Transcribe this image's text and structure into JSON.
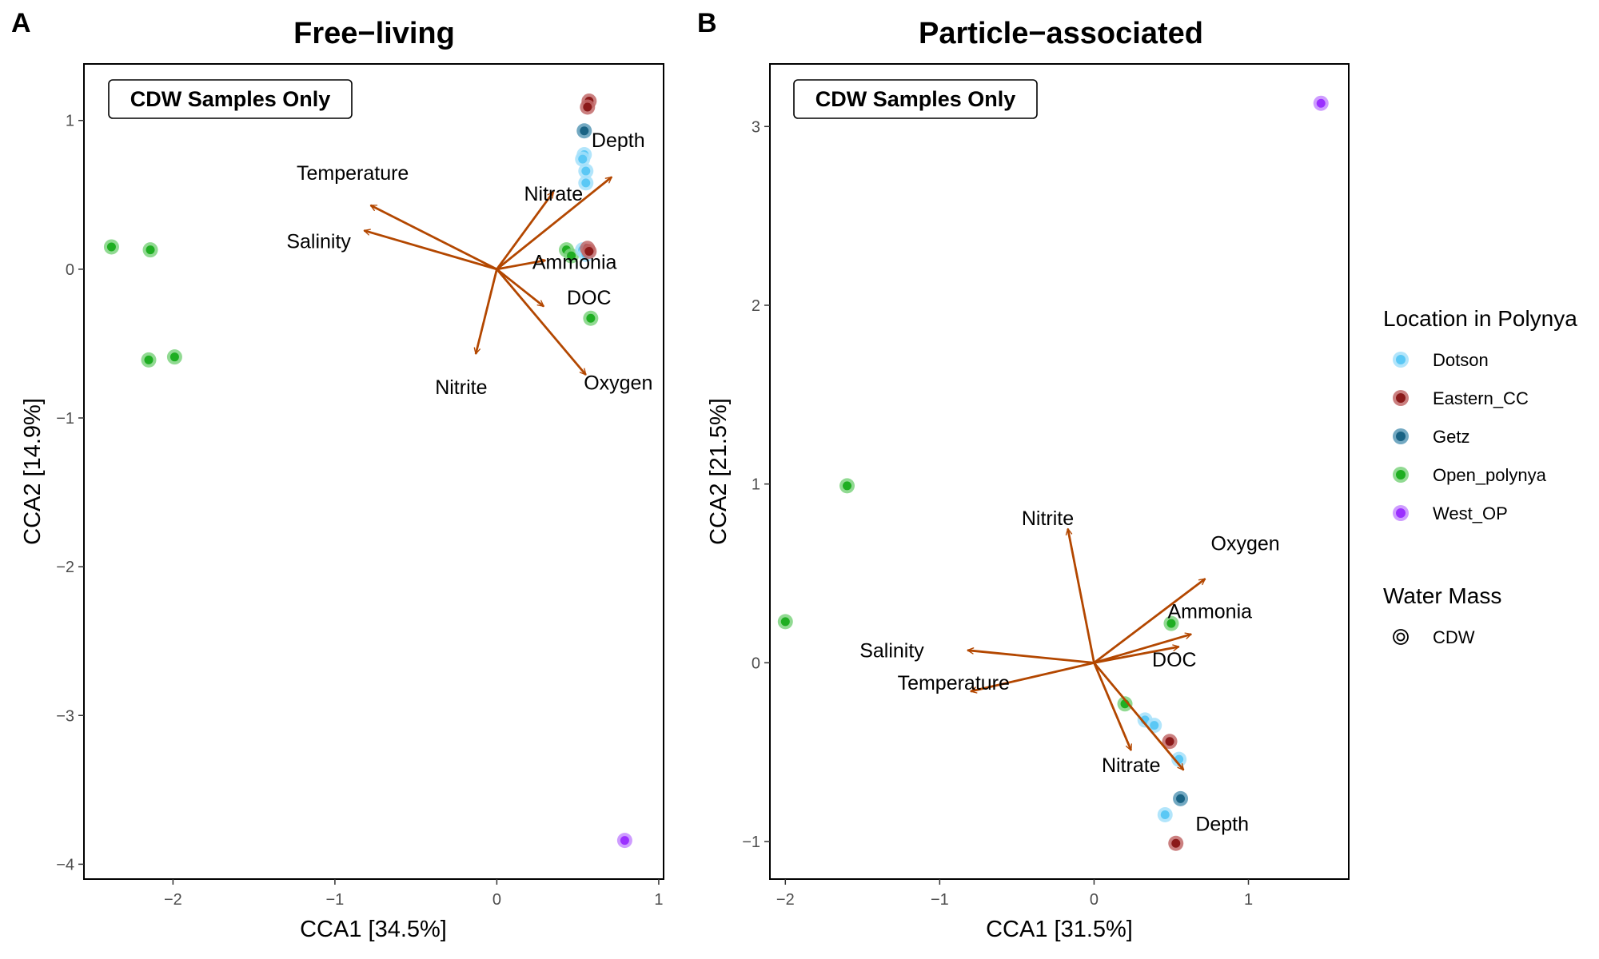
{
  "chart_data": [
    {
      "panel": "A",
      "type": "scatter",
      "title": "Free−living",
      "note": "CDW Samples Only",
      "xlabel": "CCA1   [34.5%]",
      "ylabel": "CCA2   [14.9%]",
      "xlim": [
        -2.55,
        1.03
      ],
      "ylim": [
        -4.1,
        1.38
      ],
      "xticks": [
        -2,
        -1,
        0,
        1
      ],
      "yticks": [
        -4,
        -3,
        -2,
        -1,
        0,
        1
      ],
      "xtick_labels": [
        "−2",
        "−1",
        "0",
        "1"
      ],
      "ytick_labels": [
        "−4",
        "−3",
        "−2",
        "−1",
        "0",
        "1"
      ],
      "grid": false,
      "points": [
        {
          "x": 0.57,
          "y": 1.13,
          "location": "Eastern_CC"
        },
        {
          "x": 0.56,
          "y": 1.09,
          "location": "Eastern_CC"
        },
        {
          "x": 0.54,
          "y": 0.93,
          "location": "Getz"
        },
        {
          "x": 0.54,
          "y": 0.77,
          "location": "Dotson"
        },
        {
          "x": 0.53,
          "y": 0.74,
          "location": "Dotson"
        },
        {
          "x": 0.55,
          "y": 0.66,
          "location": "Dotson"
        },
        {
          "x": 0.55,
          "y": 0.58,
          "location": "Dotson"
        },
        {
          "x": -2.38,
          "y": 0.15,
          "location": "Open_polynya"
        },
        {
          "x": -2.14,
          "y": 0.13,
          "location": "Open_polynya"
        },
        {
          "x": 0.43,
          "y": 0.13,
          "location": "Open_polynya"
        },
        {
          "x": 0.46,
          "y": 0.09,
          "location": "Open_polynya"
        },
        {
          "x": 0.53,
          "y": 0.13,
          "location": "Dotson"
        },
        {
          "x": 0.55,
          "y": 0.1,
          "location": "Dotson"
        },
        {
          "x": 0.56,
          "y": 0.14,
          "location": "Eastern_CC"
        },
        {
          "x": 0.57,
          "y": 0.12,
          "location": "Eastern_CC"
        },
        {
          "x": -2.15,
          "y": -0.61,
          "location": "Open_polynya"
        },
        {
          "x": -1.99,
          "y": -0.59,
          "location": "Open_polynya"
        },
        {
          "x": 0.58,
          "y": -0.33,
          "location": "Open_polynya"
        },
        {
          "x": 0.79,
          "y": -3.84,
          "location": "West_OP"
        }
      ],
      "vectors": [
        {
          "name": "Depth",
          "x": 0.71,
          "y": 0.62,
          "label_x": 0.75,
          "label_y": 0.87
        },
        {
          "name": "Temperature",
          "x": -0.78,
          "y": 0.43,
          "label_x": -0.89,
          "label_y": 0.65
        },
        {
          "name": "Nitrate",
          "x": 0.35,
          "y": 0.52,
          "label_x": 0.35,
          "label_y": 0.51
        },
        {
          "name": "Salinity",
          "x": -0.82,
          "y": 0.26,
          "label_x": -1.1,
          "label_y": 0.19
        },
        {
          "name": "Ammonia",
          "x": 0.3,
          "y": 0.06,
          "label_x": 0.48,
          "label_y": 0.05
        },
        {
          "name": "DOC",
          "x": 0.29,
          "y": -0.25,
          "label_x": 0.57,
          "label_y": -0.19
        },
        {
          "name": "Nitrite",
          "x": -0.13,
          "y": -0.57,
          "label_x": -0.22,
          "label_y": -0.79
        },
        {
          "name": "Oxygen",
          "x": 0.55,
          "y": -0.71,
          "label_x": 0.75,
          "label_y": -0.76
        }
      ]
    },
    {
      "panel": "B",
      "type": "scatter",
      "title": "Particle−associated",
      "note": "CDW Samples Only",
      "xlabel": "CCA1   [31.5%]",
      "ylabel": "CCA2   [21.5%]",
      "xlim": [
        -2.1,
        1.65
      ],
      "ylim": [
        -1.21,
        3.35
      ],
      "xticks": [
        -2,
        -1,
        0,
        1
      ],
      "yticks": [
        -1,
        0,
        1,
        2,
        3
      ],
      "xtick_labels": [
        "−2",
        "−1",
        "0",
        "1"
      ],
      "ytick_labels": [
        "−1",
        "0",
        "1",
        "2",
        "3"
      ],
      "grid": false,
      "points": [
        {
          "x": 1.47,
          "y": 3.13,
          "location": "West_OP"
        },
        {
          "x": -1.6,
          "y": 0.99,
          "location": "Open_polynya"
        },
        {
          "x": -2.0,
          "y": 0.23,
          "location": "Open_polynya"
        },
        {
          "x": 0.5,
          "y": 0.22,
          "location": "Open_polynya"
        },
        {
          "x": 0.2,
          "y": -0.23,
          "location": "Open_polynya"
        },
        {
          "x": 0.33,
          "y": -0.32,
          "location": "Dotson"
        },
        {
          "x": 0.39,
          "y": -0.35,
          "location": "Dotson"
        },
        {
          "x": 0.49,
          "y": -0.44,
          "location": "Eastern_CC"
        },
        {
          "x": 0.55,
          "y": -0.54,
          "location": "Dotson"
        },
        {
          "x": 0.56,
          "y": -0.76,
          "location": "Getz"
        },
        {
          "x": 0.46,
          "y": -0.85,
          "location": "Dotson"
        },
        {
          "x": 0.53,
          "y": -1.01,
          "location": "Eastern_CC"
        }
      ],
      "vectors": [
        {
          "name": "Nitrite",
          "x": -0.17,
          "y": 0.75,
          "label_x": -0.3,
          "label_y": 0.81
        },
        {
          "name": "Oxygen",
          "x": 0.72,
          "y": 0.47,
          "label_x": 0.98,
          "label_y": 0.67
        },
        {
          "name": "Ammonia",
          "x": 0.63,
          "y": 0.16,
          "label_x": 0.75,
          "label_y": 0.29
        },
        {
          "name": "DOC",
          "x": 0.55,
          "y": 0.09,
          "label_x": 0.52,
          "label_y": 0.02
        },
        {
          "name": "Salinity",
          "x": -0.82,
          "y": 0.07,
          "label_x": -1.31,
          "label_y": 0.07
        },
        {
          "name": "Temperature",
          "x": -0.8,
          "y": -0.16,
          "label_x": -0.91,
          "label_y": -0.11
        },
        {
          "name": "Nitrate",
          "x": 0.24,
          "y": -0.49,
          "label_x": 0.24,
          "label_y": -0.57
        },
        {
          "name": "Depth",
          "x": 0.58,
          "y": -0.6,
          "label_x": 0.83,
          "label_y": -0.9
        }
      ]
    }
  ],
  "legend": {
    "location_title": "Location in Polynya",
    "locations": [
      {
        "name": "Dotson",
        "fill": "#5bc8f5",
        "ring": "#a4e1fa"
      },
      {
        "name": "Eastern_CC",
        "fill": "#8b1a1a",
        "ring": "#c26a6a"
      },
      {
        "name": "Getz",
        "fill": "#1a6384",
        "ring": "#5b9ab7"
      },
      {
        "name": "Open_polynya",
        "fill": "#1fae22",
        "ring": "#7ed47f"
      },
      {
        "name": "West_OP",
        "fill": "#9b30ff",
        "ring": "#c68bff"
      }
    ],
    "watermass_title": "Water Mass",
    "watermass": [
      "CDW"
    ]
  },
  "colors": {
    "vector": "#b34700"
  }
}
